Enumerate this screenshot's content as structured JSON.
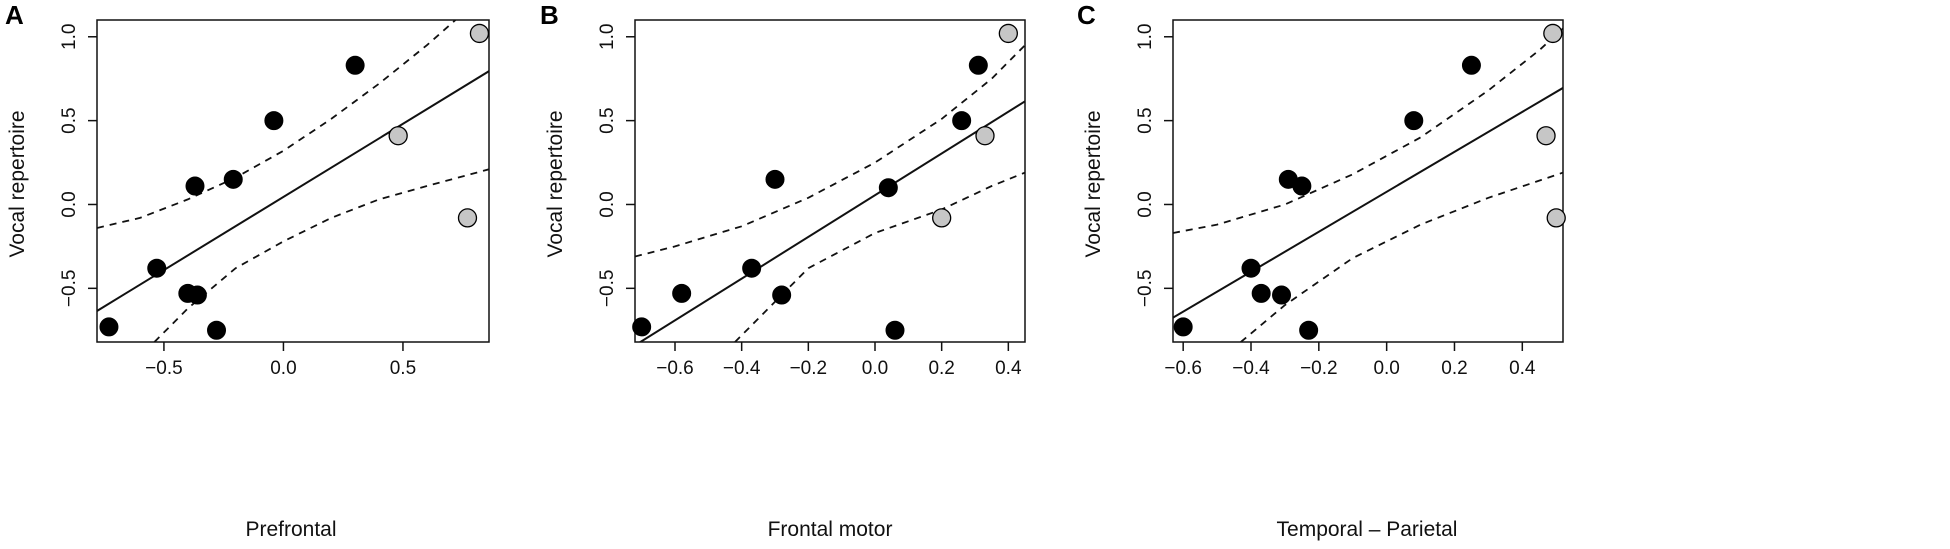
{
  "chart_data": [
    {
      "type": "scatter",
      "panel": "A",
      "xlabel": "Prefrontal",
      "ylabel": "Vocal repertoire",
      "xlim": [
        -0.78,
        0.86
      ],
      "ylim": [
        -0.82,
        1.1
      ],
      "xticks": [
        -0.5,
        0.0,
        0.5
      ],
      "xtick_labels": [
        "−0.5",
        "0.0",
        "0.5"
      ],
      "yticks": [
        -0.5,
        0.0,
        0.5,
        1.0
      ],
      "ytick_labels": [
        "−0.5",
        "0.0",
        "0.5",
        "1.0"
      ],
      "points_black": [
        {
          "x": -0.73,
          "y": -0.73
        },
        {
          "x": -0.53,
          "y": -0.38
        },
        {
          "x": -0.4,
          "y": -0.53
        },
        {
          "x": -0.36,
          "y": -0.54
        },
        {
          "x": -0.37,
          "y": 0.11
        },
        {
          "x": -0.28,
          "y": -0.75
        },
        {
          "x": -0.21,
          "y": 0.15
        },
        {
          "x": -0.04,
          "y": 0.5
        },
        {
          "x": 0.3,
          "y": 0.83
        }
      ],
      "points_gray": [
        {
          "x": 0.48,
          "y": 0.41
        },
        {
          "x": 0.77,
          "y": -0.08
        },
        {
          "x": 0.82,
          "y": 1.02
        }
      ],
      "fit_line": {
        "x1": -0.78,
        "y1": -0.635,
        "x2": 0.86,
        "y2": 0.795
      },
      "ci_upper": [
        {
          "x": -0.78,
          "y": -0.14
        },
        {
          "x": -0.6,
          "y": -0.08
        },
        {
          "x": -0.4,
          "y": 0.03
        },
        {
          "x": -0.2,
          "y": 0.16
        },
        {
          "x": 0.0,
          "y": 0.32
        },
        {
          "x": 0.2,
          "y": 0.51
        },
        {
          "x": 0.4,
          "y": 0.72
        },
        {
          "x": 0.6,
          "y": 0.95
        },
        {
          "x": 0.72,
          "y": 1.1
        }
      ],
      "ci_lower": [
        {
          "x": -0.54,
          "y": -0.82
        },
        {
          "x": -0.4,
          "y": -0.62
        },
        {
          "x": -0.2,
          "y": -0.38
        },
        {
          "x": 0.0,
          "y": -0.22
        },
        {
          "x": 0.2,
          "y": -0.08
        },
        {
          "x": 0.4,
          "y": 0.03
        },
        {
          "x": 0.6,
          "y": 0.11
        },
        {
          "x": 0.86,
          "y": 0.21
        }
      ],
      "legend": "none",
      "grid": false
    },
    {
      "type": "scatter",
      "panel": "B",
      "xlabel": "Frontal motor",
      "ylabel": "Vocal repertoire",
      "xlim": [
        -0.72,
        0.45
      ],
      "ylim": [
        -0.82,
        1.1
      ],
      "xticks": [
        -0.6,
        -0.4,
        -0.2,
        0.0,
        0.2,
        0.4
      ],
      "xtick_labels": [
        "−0.6",
        "−0.4",
        "−0.2",
        "0.0",
        "0.2",
        "0.4"
      ],
      "yticks": [
        -0.5,
        0.0,
        0.5,
        1.0
      ],
      "ytick_labels": [
        "−0.5",
        "0.0",
        "0.5",
        "1.0"
      ],
      "points_black": [
        {
          "x": -0.7,
          "y": -0.73
        },
        {
          "x": -0.58,
          "y": -0.53
        },
        {
          "x": -0.37,
          "y": -0.38
        },
        {
          "x": -0.3,
          "y": 0.15
        },
        {
          "x": -0.28,
          "y": -0.54
        },
        {
          "x": 0.04,
          "y": 0.1
        },
        {
          "x": 0.06,
          "y": -0.75
        },
        {
          "x": 0.26,
          "y": 0.5
        },
        {
          "x": 0.31,
          "y": 0.83
        }
      ],
      "points_gray": [
        {
          "x": 0.2,
          "y": -0.08
        },
        {
          "x": 0.33,
          "y": 0.41
        },
        {
          "x": 0.4,
          "y": 1.02
        }
      ],
      "fit_line": {
        "x1": -0.72,
        "y1": -0.84,
        "x2": 0.45,
        "y2": 0.615
      },
      "ci_upper": [
        {
          "x": -0.72,
          "y": -0.31
        },
        {
          "x": -0.6,
          "y": -0.25
        },
        {
          "x": -0.4,
          "y": -0.13
        },
        {
          "x": -0.2,
          "y": 0.04
        },
        {
          "x": 0.0,
          "y": 0.25
        },
        {
          "x": 0.2,
          "y": 0.51
        },
        {
          "x": 0.35,
          "y": 0.75
        },
        {
          "x": 0.45,
          "y": 0.95
        }
      ],
      "ci_lower": [
        {
          "x": -0.42,
          "y": -0.82
        },
        {
          "x": -0.3,
          "y": -0.58
        },
        {
          "x": -0.2,
          "y": -0.38
        },
        {
          "x": 0.0,
          "y": -0.17
        },
        {
          "x": 0.2,
          "y": -0.03
        },
        {
          "x": 0.35,
          "y": 0.11
        },
        {
          "x": 0.45,
          "y": 0.19
        }
      ],
      "legend": "none",
      "grid": false
    },
    {
      "type": "scatter",
      "panel": "C",
      "xlabel": "Temporal – Parietal",
      "ylabel": "Vocal repertoire",
      "xlim": [
        -0.63,
        0.52
      ],
      "ylim": [
        -0.82,
        1.1
      ],
      "xticks": [
        -0.6,
        -0.4,
        -0.2,
        0.0,
        0.2,
        0.4
      ],
      "xtick_labels": [
        "−0.6",
        "−0.4",
        "−0.2",
        "0.0",
        "0.2",
        "0.4"
      ],
      "yticks": [
        -0.5,
        0.0,
        0.5,
        1.0
      ],
      "ytick_labels": [
        "−0.5",
        "0.0",
        "0.5",
        "1.0"
      ],
      "points_black": [
        {
          "x": -0.6,
          "y": -0.73
        },
        {
          "x": -0.4,
          "y": -0.38
        },
        {
          "x": -0.37,
          "y": -0.53
        },
        {
          "x": -0.31,
          "y": -0.54
        },
        {
          "x": -0.29,
          "y": 0.15
        },
        {
          "x": -0.25,
          "y": 0.11
        },
        {
          "x": -0.23,
          "y": -0.75
        },
        {
          "x": 0.08,
          "y": 0.5
        },
        {
          "x": 0.25,
          "y": 0.83
        }
      ],
      "points_gray": [
        {
          "x": 0.47,
          "y": 0.41
        },
        {
          "x": 0.49,
          "y": 1.02
        },
        {
          "x": 0.5,
          "y": -0.08
        }
      ],
      "fit_line": {
        "x1": -0.63,
        "y1": -0.675,
        "x2": 0.52,
        "y2": 0.695
      },
      "ci_upper": [
        {
          "x": -0.63,
          "y": -0.17
        },
        {
          "x": -0.5,
          "y": -0.12
        },
        {
          "x": -0.3,
          "y": 0.0
        },
        {
          "x": -0.1,
          "y": 0.18
        },
        {
          "x": 0.1,
          "y": 0.4
        },
        {
          "x": 0.3,
          "y": 0.68
        },
        {
          "x": 0.45,
          "y": 0.92
        },
        {
          "x": 0.52,
          "y": 1.05
        }
      ],
      "ci_lower": [
        {
          "x": -0.43,
          "y": -0.82
        },
        {
          "x": -0.3,
          "y": -0.6
        },
        {
          "x": -0.1,
          "y": -0.32
        },
        {
          "x": 0.1,
          "y": -0.12
        },
        {
          "x": 0.3,
          "y": 0.04
        },
        {
          "x": 0.52,
          "y": 0.19
        }
      ],
      "legend": "none",
      "grid": false
    }
  ],
  "colors": {
    "point_black": "#000000",
    "point_gray": "#c6c6c6",
    "line": "#111111"
  }
}
